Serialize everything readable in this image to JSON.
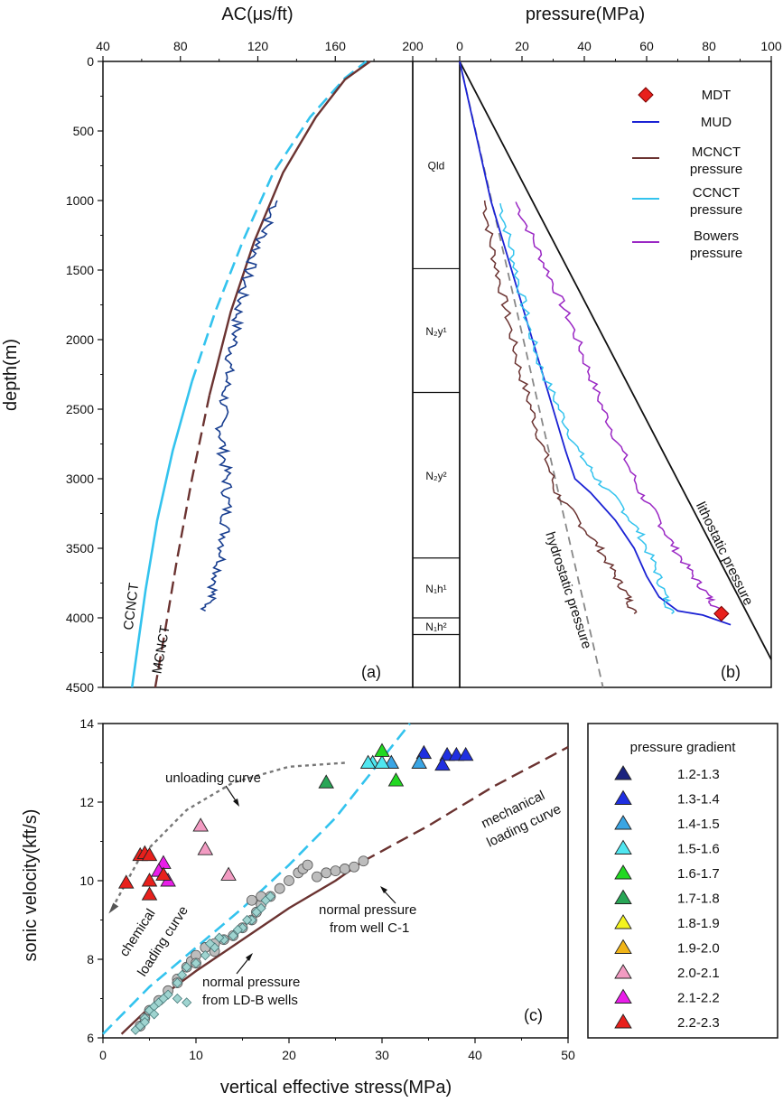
{
  "chart_data": [
    {
      "panel": "a",
      "type": "line",
      "panel_label": "(a)",
      "xlabel": "AC(μs/ft)",
      "ylabel": "depth(m)",
      "xlim": [
        40,
        200
      ],
      "ylim": [
        0,
        4500
      ],
      "x_ticks": [
        "40",
        "80",
        "120",
        "160",
        "200"
      ],
      "y_ticks": [
        "0",
        "500",
        "1000",
        "1500",
        "2000",
        "2500",
        "3000",
        "3500",
        "4000",
        "4500"
      ],
      "y_reversed": true,
      "series": [
        {
          "name": "CCNCT",
          "color": "#33c3ee",
          "dash": "solid-lower-dashed-upper",
          "points": [
            [
              55,
              4500
            ],
            [
              58,
              4200
            ],
            [
              62,
              3800
            ],
            [
              68,
              3300
            ],
            [
              76,
              2800
            ],
            [
              86,
              2300
            ],
            [
              98,
              1800
            ],
            [
              112,
              1300
            ],
            [
              128,
              800
            ],
            [
              147,
              400
            ],
            [
              165,
              120
            ],
            [
              176,
              0
            ]
          ]
        },
        {
          "name": "MCNCT",
          "color": "#6b3331",
          "dash": "dashed-lower-solid-upper",
          "points": [
            [
              67,
              4500
            ],
            [
              72,
              4100
            ],
            [
              78,
              3600
            ],
            [
              86,
              3000
            ],
            [
              95,
              2400
            ],
            [
              106,
              1800
            ],
            [
              118,
              1300
            ],
            [
              133,
              800
            ],
            [
              150,
              400
            ],
            [
              165,
              130
            ],
            [
              178,
              0
            ]
          ]
        },
        {
          "name": "",
          "color": "#173d8f",
          "noisy": true,
          "points": [
            [
              130,
              1000
            ],
            [
              124,
              1200
            ],
            [
              118,
              1400
            ],
            [
              113,
              1600
            ],
            [
              110,
              1800
            ],
            [
              108,
              2000
            ],
            [
              105,
              2200
            ],
            [
              103,
              2400
            ],
            [
              101,
              2600
            ],
            [
              102,
              2800
            ],
            [
              104,
              3000
            ],
            [
              104,
              3200
            ],
            [
              103,
              3400
            ],
            [
              101,
              3600
            ],
            [
              97,
              3800
            ],
            [
              93,
              3950
            ]
          ]
        }
      ],
      "annotations": [
        "CCNCT",
        "MCNCT"
      ]
    },
    {
      "panel": "strat",
      "type": "table",
      "xlim": [
        0,
        200
      ],
      "x_ticks": [
        "200",
        "0"
      ],
      "formations": [
        {
          "label": "Qld",
          "top": 0,
          "bottom": 1490
        },
        {
          "label": "N₂y¹",
          "top": 1490,
          "bottom": 2380
        },
        {
          "label": "N₂y²",
          "top": 2380,
          "bottom": 3570
        },
        {
          "label": "N₁h¹",
          "top": 3570,
          "bottom": 4000
        },
        {
          "label": "N₁h²",
          "top": 4000,
          "bottom": 4120
        },
        {
          "label": "",
          "top": 4120,
          "bottom": 4500
        }
      ]
    },
    {
      "panel": "b",
      "type": "line",
      "panel_label": "(b)",
      "xlabel": "pressure(MPa)",
      "xlim": [
        0,
        100
      ],
      "ylim": [
        0,
        4500
      ],
      "x_ticks": [
        "0",
        "20",
        "40",
        "60",
        "80",
        "100"
      ],
      "y_reversed": true,
      "legend": [
        {
          "name": "MDT",
          "marker": "diamond",
          "color": "#e8201c"
        },
        {
          "name": "MUD",
          "color": "#1b22d4"
        },
        {
          "name": "MCNCT pressure",
          "color": "#6b3331"
        },
        {
          "name": "CCNCT pressure",
          "color": "#33c3ee"
        },
        {
          "name": "Bowers pressure",
          "color": "#9a27c4"
        }
      ],
      "series": [
        {
          "name": "lithostatic pressure",
          "color": "#111111",
          "points": [
            [
              0,
              0
            ],
            [
              100,
              4300
            ]
          ]
        },
        {
          "name": "hydrostatic pressure",
          "color": "#888888",
          "dash": true,
          "points": [
            [
              0,
              0
            ],
            [
              46,
              4500
            ]
          ]
        },
        {
          "name": "MUD",
          "color": "#1b22d4",
          "points": [
            [
              0,
              0
            ],
            [
              10,
              1000
            ],
            [
              14,
              1300
            ],
            [
              18,
              1600
            ],
            [
              22,
              1900
            ],
            [
              26,
              2200
            ],
            [
              30,
              2500
            ],
            [
              34,
              2800
            ],
            [
              37,
              3000
            ],
            [
              42,
              3100
            ],
            [
              50,
              3300
            ],
            [
              56,
              3500
            ],
            [
              60,
              3700
            ],
            [
              64,
              3850
            ],
            [
              70,
              3950
            ],
            [
              78,
              3980
            ],
            [
              87,
              4050
            ]
          ]
        },
        {
          "name": "MCNCT pressure",
          "color": "#6b3331",
          "noisy": true,
          "points": [
            [
              8,
              1000
            ],
            [
              10,
              1300
            ],
            [
              13,
              1600
            ],
            [
              16,
              1900
            ],
            [
              19,
              2200
            ],
            [
              23,
              2500
            ],
            [
              27,
              2800
            ],
            [
              31,
              3100
            ],
            [
              38,
              3300
            ],
            [
              45,
              3500
            ],
            [
              50,
              3700
            ],
            [
              54,
              3850
            ],
            [
              56,
              3970
            ]
          ]
        },
        {
          "name": "CCNCT pressure",
          "color": "#33c3ee",
          "noisy": true,
          "points": [
            [
              13,
              1020
            ],
            [
              16,
              1300
            ],
            [
              19,
              1600
            ],
            [
              22,
              1900
            ],
            [
              26,
              2200
            ],
            [
              32,
              2500
            ],
            [
              38,
              2800
            ],
            [
              44,
              3000
            ],
            [
              52,
              3200
            ],
            [
              58,
              3400
            ],
            [
              63,
              3650
            ],
            [
              66,
              3850
            ],
            [
              68,
              3970
            ]
          ]
        },
        {
          "name": "Bowers pressure",
          "color": "#9a27c4",
          "noisy": true,
          "points": [
            [
              18,
              1010
            ],
            [
              24,
              1300
            ],
            [
              30,
              1600
            ],
            [
              36,
              1900
            ],
            [
              41,
              2200
            ],
            [
              46,
              2500
            ],
            [
              52,
              2800
            ],
            [
              58,
              3100
            ],
            [
              64,
              3300
            ],
            [
              69,
              3500
            ],
            [
              75,
              3700
            ],
            [
              80,
              3850
            ],
            [
              83,
              3950
            ]
          ]
        }
      ],
      "mdt_points": [
        [
          84,
          3970
        ]
      ],
      "annotations": [
        "lithostatic pressure",
        "hydrostatic pressure"
      ]
    },
    {
      "panel": "c",
      "type": "scatter",
      "panel_label": "(c)",
      "xlabel": "vertical effective stress(MPa)",
      "ylabel": "sonic  velocity(kft/s)",
      "xlim": [
        0,
        50
      ],
      "ylim": [
        6,
        14
      ],
      "x_ticks": [
        "0",
        "10",
        "20",
        "30",
        "40",
        "50"
      ],
      "y_ticks": [
        "6",
        "8",
        "10",
        "12",
        "14"
      ],
      "curves": [
        {
          "name": "chemical loading curve",
          "color": "#33c3ee",
          "dash": true,
          "points": [
            [
              0,
              6.1
            ],
            [
              5,
              7.3
            ],
            [
              10,
              8.3
            ],
            [
              15,
              9.3
            ],
            [
              20,
              10.4
            ],
            [
              25,
              11.6
            ],
            [
              29,
              12.8
            ],
            [
              32,
              13.7
            ],
            [
              33,
              14
            ]
          ]
        },
        {
          "name": "mechanical loading curve",
          "color": "#6b3331",
          "points": [
            [
              2,
              6.1
            ],
            [
              6,
              7.0
            ],
            [
              10,
              7.7
            ],
            [
              15,
              8.5
            ],
            [
              20,
              9.3
            ],
            [
              25,
              10.0
            ],
            [
              28,
              10.5
            ]
          ],
          "dashed_extension": [
            [
              28,
              10.5
            ],
            [
              35,
              11.4
            ],
            [
              42,
              12.4
            ],
            [
              50,
              13.4
            ]
          ]
        },
        {
          "name": "unloading curve",
          "color": "#777777",
          "dash": true,
          "points": [
            [
              26,
              13.0
            ],
            [
              20,
              12.9
            ],
            [
              14,
              12.5
            ],
            [
              9,
              11.8
            ],
            [
              4,
              10.6
            ],
            [
              1,
              9.3
            ]
          ]
        }
      ],
      "gradient_colors": {
        "1.2-1.3": "#1a237e",
        "1.3-1.4": "#1f2fe0",
        "1.4-1.5": "#3aa5e4",
        "1.5-1.6": "#50e6f0",
        "1.6-1.7": "#22d822",
        "1.7-1.8": "#28a656",
        "1.8-1.9": "#f5f51e",
        "1.9-2.0": "#f0b418",
        "2.0-2.1": "#f29bc2",
        "2.1-2.2": "#e91ee9",
        "2.2-2.3": "#e8201c"
      },
      "triangles": [
        {
          "x": 37,
          "y": 13.2,
          "g": "1.3-1.4"
        },
        {
          "x": 38,
          "y": 13.2,
          "g": "1.3-1.4"
        },
        {
          "x": 39,
          "y": 13.2,
          "g": "1.3-1.4"
        },
        {
          "x": 34.5,
          "y": 13.25,
          "g": "1.3-1.4"
        },
        {
          "x": 36.5,
          "y": 12.95,
          "g": "1.3-1.4"
        },
        {
          "x": 34,
          "y": 13.0,
          "g": "1.4-1.5"
        },
        {
          "x": 31,
          "y": 13.0,
          "g": "1.4-1.5"
        },
        {
          "x": 29,
          "y": 13.0,
          "g": "1.5-1.6"
        },
        {
          "x": 30,
          "y": 13.0,
          "g": "1.5-1.6"
        },
        {
          "x": 28.5,
          "y": 13.0,
          "g": "1.5-1.6"
        },
        {
          "x": 30,
          "y": 13.3,
          "g": "1.6-1.7"
        },
        {
          "x": 31.5,
          "y": 12.55,
          "g": "1.6-1.7"
        },
        {
          "x": 24,
          "y": 12.5,
          "g": "1.7-1.8"
        },
        {
          "x": 10.5,
          "y": 11.4,
          "g": "2.0-2.1"
        },
        {
          "x": 11,
          "y": 10.8,
          "g": "2.0-2.1"
        },
        {
          "x": 13.5,
          "y": 10.15,
          "g": "2.0-2.1"
        },
        {
          "x": 6.5,
          "y": 10.45,
          "g": "2.1-2.2"
        },
        {
          "x": 6,
          "y": 10.25,
          "g": "2.1-2.2"
        },
        {
          "x": 7,
          "y": 10.0,
          "g": "2.1-2.2"
        },
        {
          "x": 4,
          "y": 10.65,
          "g": "2.2-2.3"
        },
        {
          "x": 4.5,
          "y": 10.7,
          "g": "2.2-2.3"
        },
        {
          "x": 5,
          "y": 10.65,
          "g": "2.2-2.3"
        },
        {
          "x": 2.5,
          "y": 9.95,
          "g": "2.2-2.3"
        },
        {
          "x": 5,
          "y": 10.0,
          "g": "2.2-2.3"
        },
        {
          "x": 5,
          "y": 9.65,
          "g": "2.2-2.3"
        },
        {
          "x": 6.5,
          "y": 10.15,
          "g": "2.2-2.3"
        }
      ],
      "circles": [
        [
          4,
          6.3
        ],
        [
          4.5,
          6.5
        ],
        [
          5,
          6.7
        ],
        [
          6,
          6.95
        ],
        [
          7,
          7.2
        ],
        [
          8,
          7.5
        ],
        [
          9,
          7.8
        ],
        [
          9.5,
          7.95
        ],
        [
          10,
          8.1
        ],
        [
          11,
          8.3
        ],
        [
          12,
          8.4
        ],
        [
          13,
          8.5
        ],
        [
          14,
          8.6
        ],
        [
          15,
          8.8
        ],
        [
          16,
          9.0
        ],
        [
          16.5,
          9.2
        ],
        [
          17,
          9.4
        ],
        [
          18,
          9.6
        ],
        [
          19,
          9.8
        ],
        [
          20,
          10.0
        ],
        [
          21,
          10.2
        ],
        [
          21.5,
          10.3
        ],
        [
          22,
          10.4
        ],
        [
          23,
          10.1
        ],
        [
          24,
          10.2
        ],
        [
          25,
          10.25
        ],
        [
          26,
          10.3
        ],
        [
          27,
          10.35
        ],
        [
          28,
          10.5
        ],
        [
          16,
          9.5
        ],
        [
          17,
          9.6
        ],
        [
          12,
          8.2
        ],
        [
          10,
          7.9
        ],
        [
          8,
          7.4
        ]
      ],
      "diamonds": [
        [
          3.5,
          6.2
        ],
        [
          4,
          6.3
        ],
        [
          4.5,
          6.5
        ],
        [
          5,
          6.7
        ],
        [
          5.5,
          6.8
        ],
        [
          6,
          6.9
        ],
        [
          7,
          7.1
        ],
        [
          8,
          7.4
        ],
        [
          8.5,
          7.6
        ],
        [
          9,
          7.8
        ],
        [
          10,
          7.9
        ],
        [
          11,
          8.1
        ],
        [
          12,
          8.3
        ],
        [
          13,
          8.5
        ],
        [
          14,
          8.6
        ],
        [
          15,
          8.8
        ],
        [
          16,
          9.0
        ],
        [
          17,
          9.3
        ],
        [
          17.5,
          9.5
        ],
        [
          18,
          9.6
        ],
        [
          11.5,
          8.4
        ],
        [
          12.5,
          8.55
        ],
        [
          14.5,
          8.75
        ],
        [
          15.5,
          9.0
        ],
        [
          16.5,
          9.2
        ],
        [
          9,
          6.9
        ],
        [
          8,
          7.0
        ],
        [
          6.5,
          7.0
        ],
        [
          5.5,
          6.6
        ],
        [
          4.5,
          6.4
        ]
      ],
      "annotations": {
        "unloading": "unloading curve",
        "mechanical_1": "mechanical",
        "mechanical_2": "loading curve",
        "chemical_1": "chemical",
        "chemical_2": "loading curve",
        "c1_1": "normal pressure",
        "c1_2": "from well C-1",
        "ldb_1": "normal pressure",
        "ldb_2": "from LD-B wells"
      },
      "legend_title": "pressure gradient",
      "legend": [
        "1.2-1.3",
        "1.3-1.4",
        "1.4-1.5",
        "1.5-1.6",
        "1.6-1.7",
        "1.7-1.8",
        "1.8-1.9",
        "1.9-2.0",
        "2.0-2.1",
        "2.1-2.2",
        "2.2-2.3"
      ]
    }
  ]
}
